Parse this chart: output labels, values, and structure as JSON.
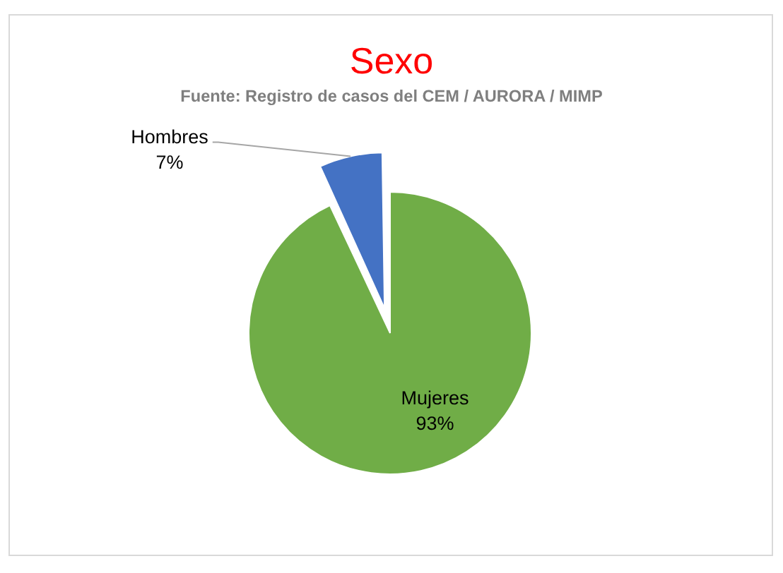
{
  "chart_data": {
    "type": "pie",
    "title": "Sexo",
    "subtitle": "Fuente: Registro de casos del CEM / AURORA / MIMP",
    "categories": [
      "Mujeres",
      "Hombres"
    ],
    "values": [
      93,
      7
    ],
    "colors": [
      "#70ad47",
      "#4472c4"
    ],
    "value_labels": [
      "93%",
      "7%"
    ]
  }
}
